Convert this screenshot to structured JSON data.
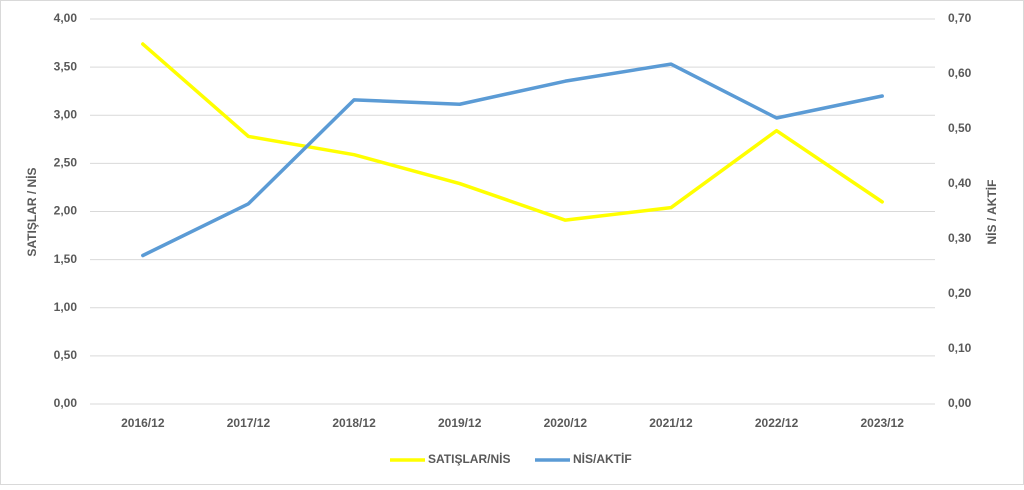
{
  "chart_data": {
    "type": "line",
    "y_label": "SATIŞLAR / NİS",
    "y2_label": "NİS / AKTİF",
    "categories": [
      "2016/12",
      "2017/12",
      "2018/12",
      "2019/12",
      "2020/12",
      "2021/12",
      "2022/12",
      "2023/12"
    ],
    "series": [
      {
        "name": "SATIŞLAR/NİS",
        "color": "#ffff00",
        "values": [
          3.74,
          2.78,
          2.59,
          2.29,
          1.91,
          2.04,
          2.84,
          2.1
        ]
      },
      {
        "name": "NİS/AKTİF",
        "color": "#5b9bd5",
        "axis": "y2",
        "values": [
          0.27,
          0.364,
          0.553,
          0.545,
          0.587,
          0.618,
          0.52,
          0.56
        ]
      }
    ],
    "ylim": [
      0,
      4
    ],
    "yticks": [
      {
        "value": 0,
        "label": "0,00"
      },
      {
        "value": 0.5,
        "label": "0,50"
      },
      {
        "value": 1,
        "label": "1,00"
      },
      {
        "value": 1.5,
        "label": "1,50"
      },
      {
        "value": 2,
        "label": "2,00"
      },
      {
        "value": 2.5,
        "label": "2,50"
      },
      {
        "value": 3,
        "label": "3,00"
      },
      {
        "value": 3.5,
        "label": "3,50"
      },
      {
        "value": 4,
        "label": "4,00"
      }
    ],
    "y2lim": [
      0,
      0.7
    ],
    "y2ticks": [
      {
        "value": 0,
        "label": "0,00"
      },
      {
        "value": 0.1,
        "label": "0,10"
      },
      {
        "value": 0.2,
        "label": "0,20"
      },
      {
        "value": 0.3,
        "label": "0,30"
      },
      {
        "value": 0.4,
        "label": "0,40"
      },
      {
        "value": 0.5,
        "label": "0,50"
      },
      {
        "value": 0.6,
        "label": "0,60"
      },
      {
        "value": 0.7,
        "label": "0,70"
      }
    ],
    "grid": true,
    "legend": "bottom"
  }
}
